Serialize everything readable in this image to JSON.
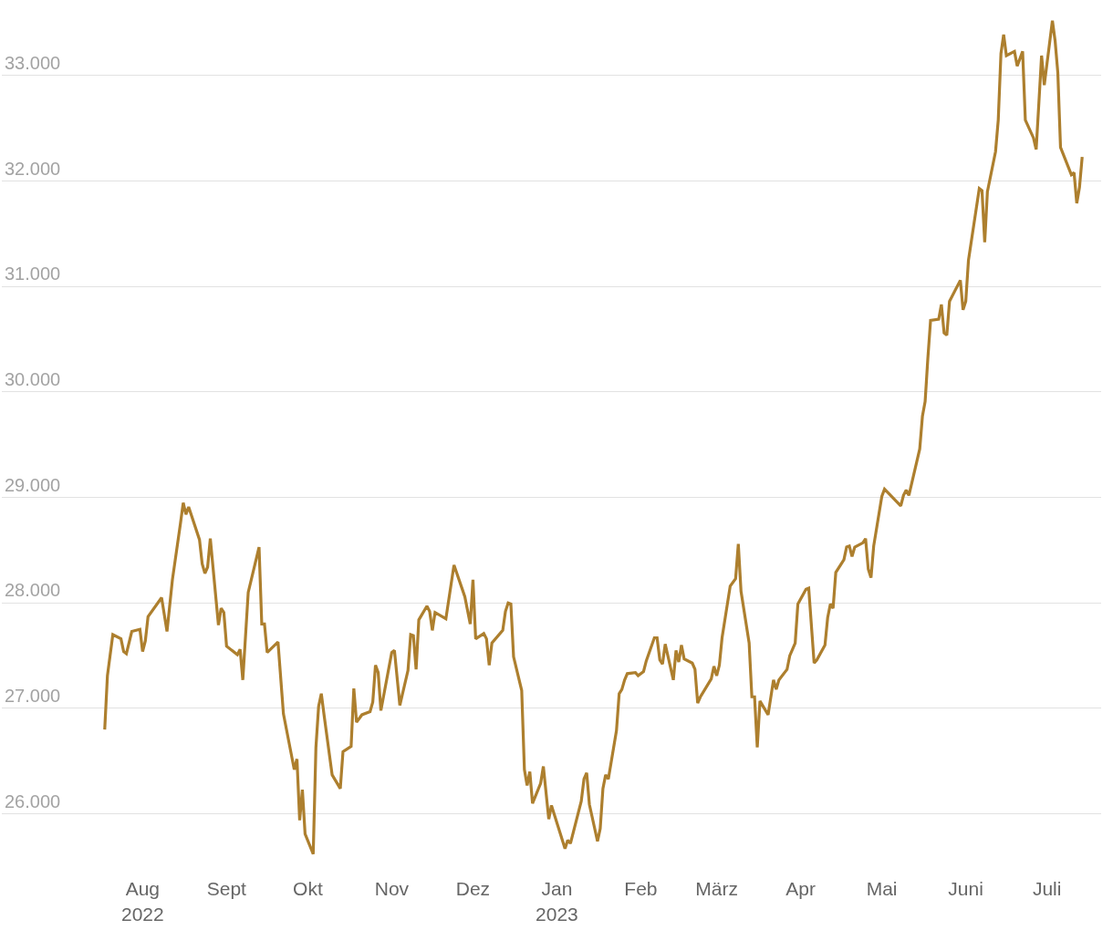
{
  "chart_data": {
    "type": "line",
    "xlim": [
      "2022-06-10",
      "2023-07-21"
    ],
    "ylim": [
      24925,
      33700
    ],
    "xticks": [
      {
        "value": "2022-08-01",
        "label": "Aug\n2022"
      },
      {
        "value": "2022-09-01",
        "label": "Sept"
      },
      {
        "value": "2022-10-01",
        "label": "Okt"
      },
      {
        "value": "2022-11-01",
        "label": "Nov"
      },
      {
        "value": "2022-12-01",
        "label": "Dez"
      },
      {
        "value": "2023-01-01",
        "label": "Jan\n2023"
      },
      {
        "value": "2023-02-01",
        "label": "Feb"
      },
      {
        "value": "2023-03-01",
        "label": "März"
      },
      {
        "value": "2023-04-01",
        "label": "Apr"
      },
      {
        "value": "2023-05-01",
        "label": "Mai"
      },
      {
        "value": "2023-06-01",
        "label": "Juni"
      },
      {
        "value": "2023-07-01",
        "label": "Juli"
      }
    ],
    "yticks": [
      {
        "value": 26000,
        "label": "26.000"
      },
      {
        "value": 27000,
        "label": "27.000"
      },
      {
        "value": 28000,
        "label": "28.000"
      },
      {
        "value": 29000,
        "label": "29.000"
      },
      {
        "value": 30000,
        "label": "30.000"
      },
      {
        "value": 31000,
        "label": "31.000"
      },
      {
        "value": 32000,
        "label": "32.000"
      },
      {
        "value": 33000,
        "label": "33.000"
      }
    ],
    "grid": "y",
    "marker": "none",
    "line_style": "solid",
    "x": [
      "2022-07-18",
      "2022-07-19",
      "2022-07-21",
      "2022-07-24",
      "2022-07-25",
      "2022-07-26",
      "2022-07-28",
      "2022-07-31",
      "2022-08-01",
      "2022-08-02",
      "2022-08-03",
      "2022-08-08",
      "2022-08-10",
      "2022-08-12",
      "2022-08-15",
      "2022-08-16",
      "2022-08-17",
      "2022-08-18",
      "2022-08-22",
      "2022-08-23",
      "2022-08-24",
      "2022-08-25",
      "2022-08-26",
      "2022-08-29",
      "2022-08-30",
      "2022-08-31",
      "2022-09-01",
      "2022-09-05",
      "2022-09-06",
      "2022-09-07",
      "2022-09-09",
      "2022-09-13",
      "2022-09-14",
      "2022-09-15",
      "2022-09-16",
      "2022-09-20",
      "2022-09-22",
      "2022-09-26",
      "2022-09-27",
      "2022-09-28",
      "2022-09-29",
      "2022-09-30",
      "2022-10-03",
      "2022-10-04",
      "2022-10-05",
      "2022-10-06",
      "2022-10-07",
      "2022-10-10",
      "2022-10-13",
      "2022-10-14",
      "2022-10-17",
      "2022-10-18",
      "2022-10-19",
      "2022-10-21",
      "2022-10-24",
      "2022-10-25",
      "2022-10-26",
      "2022-10-27",
      "2022-10-28",
      "2022-11-01",
      "2022-11-02",
      "2022-11-04",
      "2022-11-07",
      "2022-11-08",
      "2022-11-09",
      "2022-11-10",
      "2022-11-11",
      "2022-11-14",
      "2022-11-15",
      "2022-11-16",
      "2022-11-17",
      "2022-11-21",
      "2022-11-24",
      "2022-11-28",
      "2022-11-30",
      "2022-12-01",
      "2022-12-02",
      "2022-12-05",
      "2022-12-06",
      "2022-12-07",
      "2022-12-08",
      "2022-12-12",
      "2022-12-13",
      "2022-12-14",
      "2022-12-15",
      "2022-12-16",
      "2022-12-19",
      "2022-12-20",
      "2022-12-21",
      "2022-12-22",
      "2022-12-23",
      "2022-12-26",
      "2022-12-27",
      "2022-12-29",
      "2022-12-30",
      "2023-01-04",
      "2023-01-05",
      "2023-01-06",
      "2023-01-10",
      "2023-01-11",
      "2023-01-12",
      "2023-01-13",
      "2023-01-16",
      "2023-01-17",
      "2023-01-18",
      "2023-01-19",
      "2023-01-20",
      "2023-01-23",
      "2023-01-24",
      "2023-01-25",
      "2023-01-26",
      "2023-01-27",
      "2023-01-30",
      "2023-01-31",
      "2023-02-02",
      "2023-02-03",
      "2023-02-06",
      "2023-02-07",
      "2023-02-08",
      "2023-02-09",
      "2023-02-10",
      "2023-02-13",
      "2023-02-14",
      "2023-02-15",
      "2023-02-16",
      "2023-02-17",
      "2023-02-20",
      "2023-02-21",
      "2023-02-22",
      "2023-02-23",
      "2023-02-27",
      "2023-02-28",
      "2023-03-01",
      "2023-03-02",
      "2023-03-03",
      "2023-03-06",
      "2023-03-08",
      "2023-03-09",
      "2023-03-10",
      "2023-03-13",
      "2023-03-14",
      "2023-03-15",
      "2023-03-16",
      "2023-03-17",
      "2023-03-20",
      "2023-03-22",
      "2023-03-23",
      "2023-03-24",
      "2023-03-27",
      "2023-03-28",
      "2023-03-30",
      "2023-03-31",
      "2023-04-03",
      "2023-04-04",
      "2023-04-06",
      "2023-04-07",
      "2023-04-10",
      "2023-04-11",
      "2023-04-12",
      "2023-04-13",
      "2023-04-14",
      "2023-04-17",
      "2023-04-18",
      "2023-04-19",
      "2023-04-20",
      "2023-04-21",
      "2023-04-24",
      "2023-04-25",
      "2023-04-26",
      "2023-04-27",
      "2023-04-28",
      "2023-05-01",
      "2023-05-02",
      "2023-05-08",
      "2023-05-09",
      "2023-05-10",
      "2023-05-11",
      "2023-05-15",
      "2023-05-16",
      "2023-05-17",
      "2023-05-18",
      "2023-05-19",
      "2023-05-22",
      "2023-05-23",
      "2023-05-24",
      "2023-05-25",
      "2023-05-26",
      "2023-05-30",
      "2023-05-31",
      "2023-06-01",
      "2023-06-02",
      "2023-06-06",
      "2023-06-07",
      "2023-06-08",
      "2023-06-09",
      "2023-06-12",
      "2023-06-13",
      "2023-06-14",
      "2023-06-15",
      "2023-06-16",
      "2023-06-19",
      "2023-06-20",
      "2023-06-22",
      "2023-06-23",
      "2023-06-26",
      "2023-06-27",
      "2023-06-28",
      "2023-06-29",
      "2023-06-30",
      "2023-07-03",
      "2023-07-04",
      "2023-07-05",
      "2023-07-06",
      "2023-07-10",
      "2023-07-11",
      "2023-07-12",
      "2023-07-13",
      "2023-07-14"
    ],
    "series": [
      {
        "color": "#ad7f2e",
        "values": [
          26800,
          27310,
          27700,
          27660,
          27540,
          27520,
          27730,
          27750,
          27540,
          27640,
          27870,
          28050,
          27730,
          28220,
          28760,
          28950,
          28840,
          28910,
          28600,
          28370,
          28280,
          28340,
          28610,
          27790,
          27950,
          27910,
          27590,
          27510,
          27560,
          27270,
          28100,
          28530,
          27800,
          27800,
          27530,
          27630,
          26950,
          26420,
          26520,
          25940,
          26230,
          25810,
          25620,
          26630,
          27020,
          27140,
          26940,
          26370,
          26240,
          26590,
          26640,
          27190,
          26870,
          26940,
          26970,
          27060,
          27410,
          27340,
          26980,
          27530,
          27550,
          27030,
          27360,
          27700,
          27690,
          27370,
          27840,
          27970,
          27920,
          27740,
          27910,
          27850,
          28360,
          28060,
          27800,
          28220,
          27660,
          27710,
          27660,
          27410,
          27620,
          27740,
          27920,
          28000,
          27990,
          27490,
          27170,
          26420,
          26270,
          26400,
          26100,
          26290,
          26450,
          25950,
          26080,
          25670,
          25750,
          25720,
          26120,
          26330,
          26390,
          26090,
          25740,
          25860,
          26240,
          26370,
          26330,
          26790,
          27140,
          27180,
          27270,
          27330,
          27340,
          27310,
          27350,
          27450,
          27670,
          27670,
          27460,
          27420,
          27610,
          27270,
          27550,
          27440,
          27600,
          27470,
          27430,
          27370,
          27050,
          27110,
          27280,
          27400,
          27310,
          27410,
          27670,
          28160,
          28230,
          28560,
          28110,
          27620,
          27110,
          27110,
          26630,
          27070,
          26940,
          27270,
          27180,
          27270,
          27370,
          27500,
          27620,
          27990,
          28130,
          28140,
          27430,
          27460,
          27600,
          27860,
          27990,
          27950,
          28290,
          28410,
          28530,
          28540,
          28440,
          28530,
          28570,
          28610,
          28320,
          28240,
          28540,
          29010,
          29080,
          28920,
          29020,
          29070,
          29020,
          29460,
          29770,
          29910,
          30320,
          30680,
          30690,
          30830,
          30560,
          30540,
          30860,
          31060,
          30780,
          30860,
          31250,
          31930,
          31910,
          31420,
          31900,
          32280,
          32580,
          33210,
          33390,
          33190,
          33230,
          33090,
          33230,
          32580,
          32410,
          32300,
          32740,
          33190,
          32910,
          33520,
          33330,
          33030,
          32320,
          32060,
          32080,
          31790,
          31940,
          32230
        ]
      }
    ]
  }
}
